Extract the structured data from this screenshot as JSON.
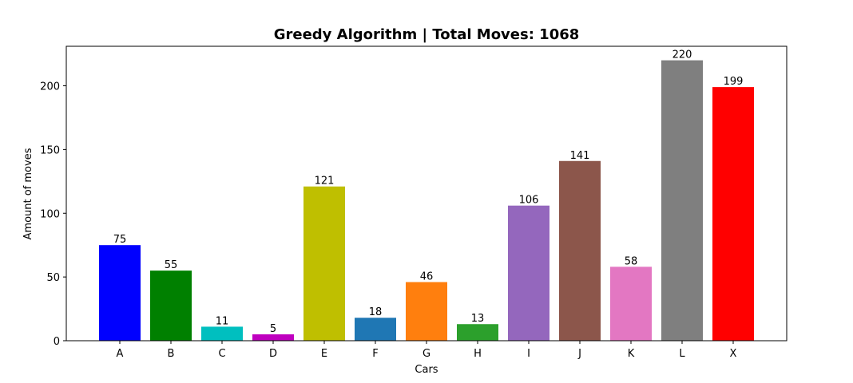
{
  "chart_data": {
    "type": "bar",
    "title": "Greedy Algorithm | Total Moves: 1068",
    "xlabel": "Cars",
    "ylabel": "Amount of moves",
    "categories": [
      "A",
      "B",
      "C",
      "D",
      "E",
      "F",
      "G",
      "H",
      "I",
      "J",
      "K",
      "L",
      "X"
    ],
    "values": [
      75,
      55,
      11,
      5,
      121,
      18,
      46,
      13,
      106,
      141,
      58,
      220,
      199
    ],
    "colors": [
      "#0000ff",
      "#008000",
      "#00bfbf",
      "#bf00bf",
      "#bfbf00",
      "#1f77b4",
      "#ff7f0e",
      "#2ca02c",
      "#9467bd",
      "#8c564b",
      "#e377c2",
      "#7f7f7f",
      "#ff0000"
    ],
    "ylim": [
      0,
      231
    ],
    "yticks": [
      0,
      50,
      100,
      150,
      200
    ],
    "grid": false,
    "legend": "none"
  }
}
